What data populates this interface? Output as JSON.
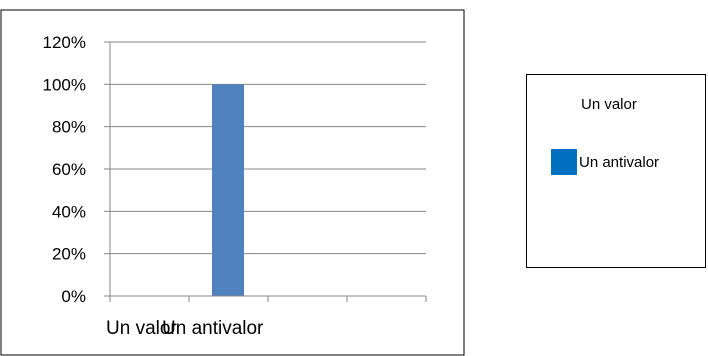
{
  "chart_data": {
    "type": "bar",
    "categories": [
      "Un valor",
      "Un antivalor"
    ],
    "series": [
      {
        "name": "Un valor",
        "values": [
          null,
          null
        ],
        "color": ""
      },
      {
        "name": "Un antivalor",
        "values": [
          null,
          1.0
        ],
        "color": "#4f81bd"
      }
    ],
    "ylim": [
      0,
      1.2
    ],
    "yticks": [
      0,
      0.2,
      0.4,
      0.6,
      0.8,
      1.0,
      1.2
    ],
    "ytick_labels": [
      "0%",
      "20%",
      "40%",
      "60%",
      "80%",
      "100%",
      "120%"
    ],
    "grid": true,
    "legend": "right",
    "title": "",
    "xlabel": "",
    "ylabel": ""
  },
  "legend": {
    "items": [
      {
        "label": "Un valor",
        "color": ""
      },
      {
        "label": "Un antivalor",
        "color": "#0070c0"
      }
    ]
  }
}
